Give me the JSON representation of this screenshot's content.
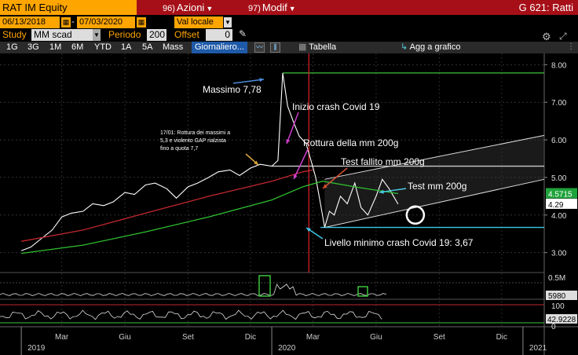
{
  "header": {
    "ticker": "RAT IM Equity",
    "menu_actions": {
      "num": "96)",
      "label": "Azioni"
    },
    "menu_modify": {
      "num": "97)",
      "label": "Modif"
    },
    "graph_title": "G 621: Ratti"
  },
  "params": {
    "date_from": "06/13/2018",
    "date_to": "07/03/2020",
    "currency": "Val locale",
    "study_label": "Study",
    "study_value": "MM scad",
    "period_label": "Periodo",
    "period_value": "200",
    "offset_label": "Offset",
    "offset_value": "0"
  },
  "toolbar": {
    "zoom": [
      "1G",
      "3G",
      "1M",
      "6M",
      "YTD",
      "1A",
      "5A",
      "Mass"
    ],
    "active": "Giornaliero...",
    "table": "Tabella",
    "add_chart": "Agg a grafico"
  },
  "chart_data": {
    "type": "line",
    "ylim": [
      2.7,
      8.3
    ],
    "y_ticks": [
      "3.00",
      "4.00",
      "5.00",
      "6.00",
      "7.00",
      "8.00"
    ],
    "x_month_labels": [
      "Mar",
      "Giu",
      "Set",
      "Dic",
      "Mar",
      "Giu",
      "Set",
      "Dic"
    ],
    "x_year_labels": [
      "2019",
      "2020",
      "2021"
    ],
    "price_right_labels": [
      "4.5715",
      "4.29"
    ],
    "volume_labels": [
      "0.5M",
      "5980"
    ],
    "rsi_labels": [
      "100",
      "0",
      "42.9228"
    ],
    "series": [
      {
        "color": "#ffffff",
        "x": [
          "2019-01-01",
          "2019-01-15",
          "2019-02-01",
          "2019-02-15",
          "2019-03-01",
          "2019-03-15",
          "2019-04-01",
          "2019-04-15",
          "2019-05-01",
          "2019-05-15",
          "2019-06-01",
          "2019-06-15",
          "2019-07-01",
          "2019-07-15",
          "2019-08-01",
          "2019-08-15",
          "2019-09-01",
          "2019-09-15",
          "2019-10-01",
          "2019-10-15",
          "2019-11-01",
          "2019-11-15",
          "2019-12-01",
          "2019-12-15",
          "2020-01-01",
          "2020-01-10",
          "2020-01-17",
          "2020-01-24",
          "2020-02-01",
          "2020-02-10",
          "2020-02-20",
          "2020-02-28",
          "2020-03-05",
          "2020-03-12",
          "2020-03-18",
          "2020-03-25",
          "2020-04-01",
          "2020-04-10",
          "2020-04-20",
          "2020-05-01",
          "2020-05-10",
          "2020-05-20",
          "2020-06-01",
          "2020-06-10",
          "2020-06-20",
          "2020-07-03"
        ],
        "y": [
          3.05,
          3.15,
          3.4,
          3.6,
          3.95,
          4.05,
          4.1,
          4.3,
          4.25,
          4.35,
          4.6,
          4.55,
          4.8,
          4.85,
          4.7,
          4.45,
          4.75,
          4.85,
          5.0,
          5.15,
          5.2,
          5.05,
          5.25,
          5.35,
          5.3,
          5.45,
          7.78,
          6.9,
          6.5,
          6.1,
          5.9,
          5.4,
          5.0,
          4.3,
          3.67,
          4.1,
          4.0,
          4.5,
          4.3,
          4.85,
          4.2,
          4.0,
          4.5,
          4.95,
          4.7,
          4.29
        ]
      },
      {
        "color": "#c0282f",
        "x": [
          "2019-01-01",
          "2019-04-01",
          "2019-07-01",
          "2019-10-01",
          "2020-01-01",
          "2020-02-15",
          "2020-03-01"
        ],
        "y": [
          3.3,
          3.6,
          4.05,
          4.5,
          4.9,
          5.15,
          5.2
        ]
      },
      {
        "color": "#2fbf2f",
        "x": [
          "2019-01-01",
          "2019-04-01",
          "2019-07-01",
          "2019-10-01",
          "2020-01-01",
          "2020-02-15",
          "2020-03-15",
          "2020-05-01",
          "2020-07-03"
        ],
        "y": [
          2.98,
          3.2,
          3.55,
          3.95,
          4.4,
          4.75,
          4.9,
          4.75,
          4.57
        ]
      }
    ],
    "levels": [
      {
        "label": "Massimo 7,78",
        "y": 7.78
      },
      {
        "label": "Test fallito mm 200g",
        "y": 5.3
      },
      {
        "label": "Livello minimo crash Covid 19: 3,67",
        "y": 3.67
      }
    ],
    "annotations": [
      "17/01: Rottura dei massimi a",
      "5,3 e violento GAP rialzista",
      "fino a quota 7,7",
      "Inizio crash Covid 19",
      "Rottura della mm 200g",
      "Test mm 200g"
    ]
  }
}
